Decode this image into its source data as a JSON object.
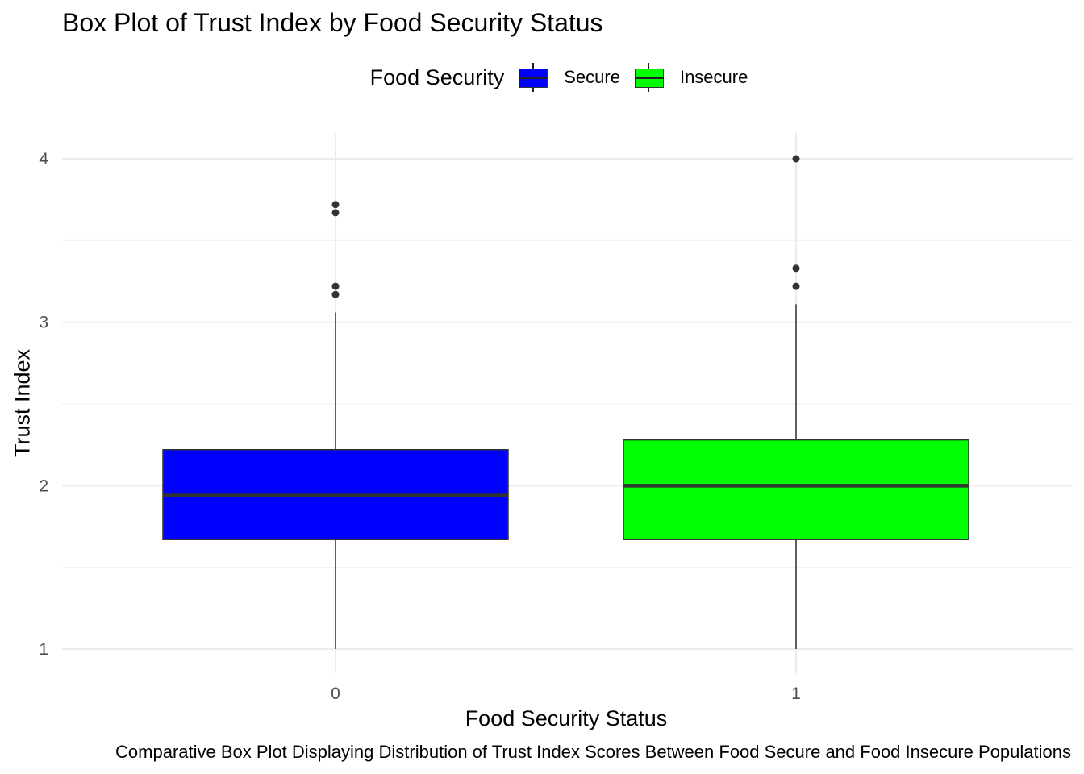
{
  "chart_data": {
    "type": "box",
    "title": "Box Plot of Trust Index by Food Security Status",
    "xlabel": "Food Security Status",
    "ylabel": "Trust Index",
    "caption": "Comparative Box Plot Displaying Distribution of Trust Index Scores Between Food Secure and Food Insecure Populations",
    "legend": {
      "title": "Food Security",
      "position": "top",
      "items": [
        {
          "label": "Secure",
          "color": "#0000FF"
        },
        {
          "label": "Insecure",
          "color": "#00FF00"
        }
      ]
    },
    "categories": [
      "0",
      "1"
    ],
    "ylim": [
      0.96,
      4.15
    ],
    "yticks": [
      1,
      2,
      3,
      4
    ],
    "grid": true,
    "boxes": [
      {
        "category": "0",
        "group": "Secure",
        "color": "#0000FF",
        "whisker_low": 1.0,
        "q1": 1.67,
        "median": 1.94,
        "q3": 2.22,
        "whisker_high": 3.06,
        "outliers": [
          3.17,
          3.22,
          3.67,
          3.72
        ]
      },
      {
        "category": "1",
        "group": "Insecure",
        "color": "#00FF00",
        "whisker_low": 1.0,
        "q1": 1.67,
        "median": 2.0,
        "q3": 2.28,
        "whisker_high": 3.11,
        "outliers": [
          3.22,
          3.33,
          4.0
        ]
      }
    ]
  }
}
